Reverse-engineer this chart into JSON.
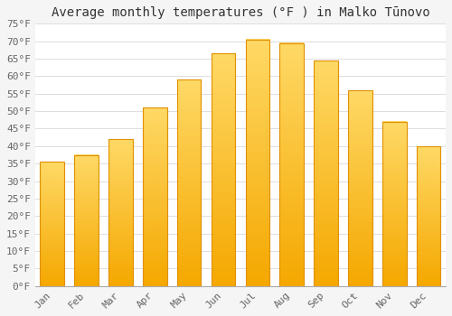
{
  "title": "Average monthly temperatures (°F ) in Malko Tūnovo",
  "months": [
    "Jan",
    "Feb",
    "Mar",
    "Apr",
    "May",
    "Jun",
    "Jul",
    "Aug",
    "Sep",
    "Oct",
    "Nov",
    "Dec"
  ],
  "values": [
    35.5,
    37.5,
    42.0,
    51.0,
    59.0,
    66.5,
    70.5,
    69.5,
    64.5,
    56.0,
    47.0,
    40.0
  ],
  "bar_color_bottom": "#F5A800",
  "bar_color_top": "#FFD966",
  "bar_edge_color": "#E09000",
  "background_color": "#f5f5f5",
  "plot_bg_color": "#ffffff",
  "grid_color": "#dddddd",
  "text_color": "#666666",
  "title_color": "#333333",
  "ylim": [
    0,
    75
  ],
  "yticks": [
    0,
    5,
    10,
    15,
    20,
    25,
    30,
    35,
    40,
    45,
    50,
    55,
    60,
    65,
    70,
    75
  ],
  "title_fontsize": 10,
  "tick_fontsize": 8,
  "font_family": "monospace",
  "bar_width": 0.7
}
